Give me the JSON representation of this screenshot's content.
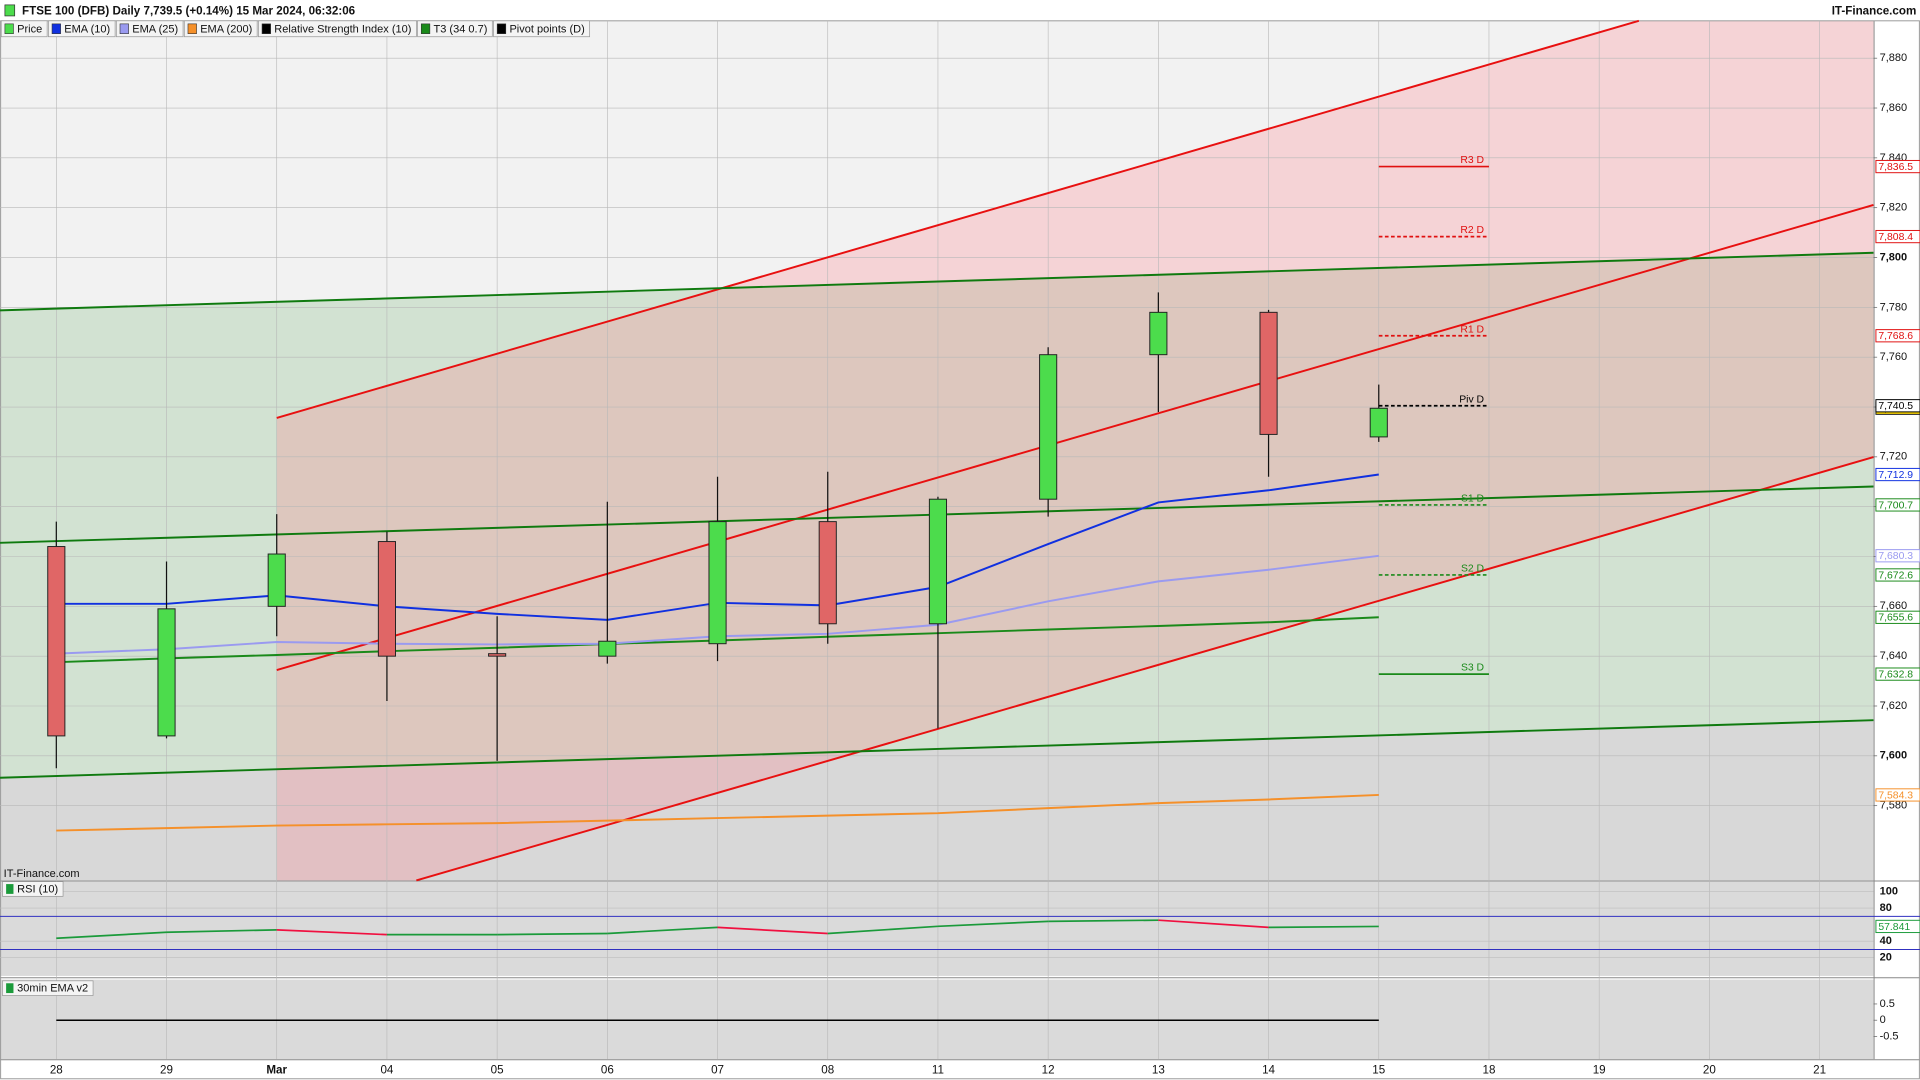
{
  "header": {
    "title": "FTSE 100 (DFB) Daily 7,739.5 (+0.14%) 15 Mar 2024, 06:32:06",
    "brand": "IT-Finance.com"
  },
  "chart_data": [
    {
      "type": "candlestick",
      "watermark": "IT-Finance.com",
      "legend": [
        {
          "label": "Price",
          "color": "#4cdc4c"
        },
        {
          "label": "EMA (10)",
          "color": "#1030e0"
        },
        {
          "label": "EMA (25)",
          "color": "#9a9af0"
        },
        {
          "label": "EMA (200)",
          "color": "#f5902a"
        },
        {
          "label": "Relative Strength Index (10)",
          "color": "#000000"
        },
        {
          "label": "T3 (34 0.7)",
          "color": "#1a8a1a"
        },
        {
          "label": "Pivot points (D)",
          "color": "#000000"
        }
      ],
      "categories": [
        "28",
        "29",
        "Mar",
        "04",
        "05",
        "06",
        "07",
        "08",
        "11",
        "12",
        "13",
        "14",
        "15",
        "18",
        "19",
        "20",
        "21"
      ],
      "open": [
        7684,
        7608,
        7660,
        7686,
        7641,
        7640,
        7645,
        7694,
        7653,
        7703,
        7761,
        7778,
        7728,
        null,
        null,
        null,
        null
      ],
      "high": [
        7694,
        7678,
        7697,
        7690,
        7656,
        7702,
        7712,
        7714,
        7704,
        7764,
        7786,
        7779,
        7749,
        null,
        null,
        null,
        null
      ],
      "low": [
        7595,
        7607,
        7648,
        7622,
        7598,
        7637,
        7638,
        7645,
        7611,
        7696,
        7738,
        7712,
        7726,
        null,
        null,
        null,
        null
      ],
      "close": [
        7608,
        7659,
        7681,
        7640,
        7640,
        7646,
        7694,
        7653,
        7703,
        7761,
        7778,
        7729,
        7739.5,
        null,
        null,
        null,
        null
      ],
      "close_label": "7,739.5",
      "up_color": "#4cdc4c",
      "down_color": "#e06666",
      "series": [
        {
          "color": "#f5902a",
          "values": [
            7570,
            7571,
            7572,
            7572.5,
            7573,
            7574,
            7575,
            7576,
            7577,
            7579,
            7581,
            7582.5,
            7584.3,
            null,
            null,
            null,
            null
          ],
          "last_label": "7,584.3"
        },
        {
          "color": "#1a8a1a",
          "values": [
            7637.6,
            7639.1,
            7640.5,
            7642,
            7643.4,
            7644.9,
            7646.3,
            7647.8,
            7649.2,
            7650.7,
            7652.1,
            7653.6,
            7655.6,
            null,
            null,
            null,
            null
          ],
          "last_label": "7,655.6"
        },
        {
          "color": "#9a9af0",
          "values": [
            7641,
            7642.8,
            7645.7,
            7645,
            7644.7,
            7645,
            7648,
            7649,
            7652.6,
            7662,
            7670,
            7674.7,
            7680.3,
            null,
            null,
            null,
            null
          ],
          "last_label": "7,680.3"
        },
        {
          "color": "#1030e0",
          "values": [
            7661,
            7661,
            7664.4,
            7660,
            7657,
            7654.6,
            7661.4,
            7660.4,
            7667.8,
            7685,
            7701.7,
            7706.6,
            7712.9,
            null,
            null,
            null,
            null
          ],
          "last_label": "7,712.9"
        }
      ],
      "pivots": [
        {
          "name": "R3 D",
          "value": 7836.5,
          "label": "7,836.5",
          "color": "#e01010",
          "dashed": false
        },
        {
          "name": "R2 D",
          "value": 7808.4,
          "label": "7,808.4",
          "color": "#e01010",
          "dashed": true
        },
        {
          "name": "R1 D",
          "value": 7768.6,
          "label": "7,768.6",
          "color": "#e01010",
          "dashed": true
        },
        {
          "name": "Piv D",
          "value": 7740.5,
          "label": "7,740.5",
          "color": "#000000",
          "dashed": true
        },
        {
          "name": "S1 D",
          "value": 7700.7,
          "label": "7,700.7",
          "color": "#1a8a1a",
          "dashed": true
        },
        {
          "name": "S2 D",
          "value": 7672.6,
          "label": "7,672.6",
          "color": "#1a8a1a",
          "dashed": true
        },
        {
          "name": "S3 D",
          "value": 7632.8,
          "label": "7,632.8",
          "color": "#1a8a1a",
          "dashed": false
        }
      ],
      "trendlines": [
        {
          "color": "#e81010",
          "x": [
            2,
            14.36
          ],
          "y": [
            7735.6,
            7895
          ]
        },
        {
          "color": "#e81010",
          "x": [
            2,
            16.489
          ],
          "y": [
            7634.4,
            7821.1
          ]
        },
        {
          "color": "#e81010",
          "x": [
            3.267,
            16.489
          ],
          "y": [
            7550,
            7719.9
          ]
        },
        {
          "color": "#0f7a0f",
          "x": [
            -0.511,
            16.489
          ],
          "y": [
            7778.8,
            7801.9
          ]
        },
        {
          "color": "#0f7a0f",
          "x": [
            -0.511,
            16.489
          ],
          "y": [
            7685.5,
            7708.1
          ]
        },
        {
          "color": "#0f7a0f",
          "x": [
            -0.511,
            16.489
          ],
          "y": [
            7591.2,
            7614.3
          ]
        }
      ],
      "xlim": [
        -0.511,
        16.489
      ],
      "ylim": [
        7550,
        7895
      ],
      "yticks": [
        {
          "value": 7580,
          "label": "7,580"
        },
        {
          "value": 7600,
          "label": "7,600"
        },
        {
          "value": 7620,
          "label": "7,620"
        },
        {
          "value": 7640,
          "label": "7,640"
        },
        {
          "value": 7660,
          "label": "7,660"
        },
        {
          "value": 7680,
          "label": "7,680"
        },
        {
          "value": 7700,
          "label": "7,700"
        },
        {
          "value": 7720,
          "label": "7,720"
        },
        {
          "value": 7740,
          "label": "7,740"
        },
        {
          "value": 7760,
          "label": "7,760"
        },
        {
          "value": 7780,
          "label": "7,780"
        },
        {
          "value": 7800,
          "label": "7,800"
        },
        {
          "value": 7820,
          "label": "7,820"
        },
        {
          "value": 7840,
          "label": "7,840"
        },
        {
          "value": 7860,
          "label": "7,860"
        },
        {
          "value": 7880,
          "label": "7,880"
        }
      ],
      "grid": true
    },
    {
      "type": "rsi",
      "title": "RSI (10)",
      "values": [
        43.5,
        50.8,
        53.7,
        47.9,
        47.9,
        49.3,
        56.7,
        49.3,
        58,
        64,
        65.4,
        56.7,
        57.841,
        null,
        null,
        null,
        null
      ],
      "up_color": "#1a9a3a",
      "down_color": "#f01040",
      "levels": [
        70,
        30
      ],
      "level_color": "#3030c0",
      "ylim": [
        -2,
        112
      ],
      "yticks": [
        100,
        80,
        40,
        20
      ],
      "last_label": "57.841"
    },
    {
      "type": "line",
      "title": "30min EMA v2",
      "color": "#000000",
      "values": [
        0,
        0,
        0,
        0,
        0,
        0,
        0,
        0,
        0,
        0,
        0,
        0,
        0,
        null,
        null,
        null,
        null
      ],
      "ylim": [
        -1.2,
        1.25
      ],
      "yticks": [
        0.5,
        0,
        -0.5
      ]
    }
  ]
}
